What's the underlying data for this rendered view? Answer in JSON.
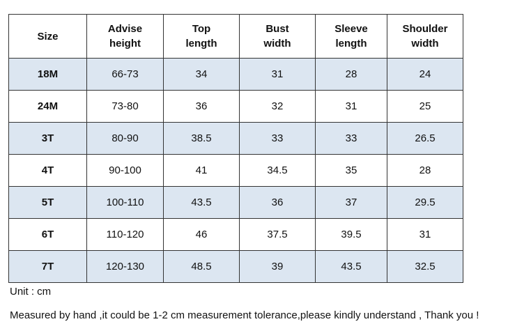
{
  "table": {
    "header": [
      [
        "Size"
      ],
      [
        "Advise",
        "height"
      ],
      [
        "Top",
        "length"
      ],
      [
        "Bust",
        "width"
      ],
      [
        "Sleeve",
        "length"
      ],
      [
        "Shoulder",
        "width"
      ]
    ],
    "rows": [
      [
        "18M",
        "66-73",
        "34",
        "31",
        "28",
        "24"
      ],
      [
        "24M",
        "73-80",
        "36",
        "32",
        "31",
        "25"
      ],
      [
        "3T",
        "80-90",
        "38.5",
        "33",
        "33",
        "26.5"
      ],
      [
        "4T",
        "90-100",
        "41",
        "34.5",
        "35",
        "28"
      ],
      [
        "5T",
        "100-110",
        "43.5",
        "36",
        "37",
        "29.5"
      ],
      [
        "6T",
        "110-120",
        "46",
        "37.5",
        "39.5",
        "31"
      ],
      [
        "7T",
        "120-130",
        "48.5",
        "39",
        "43.5",
        "32.5"
      ]
    ]
  },
  "notes": {
    "unit": "Unit : cm",
    "disclaimer": "Measured by hand ,it could be 1-2 cm measurement tolerance,please kindly understand , Thank you !"
  }
}
